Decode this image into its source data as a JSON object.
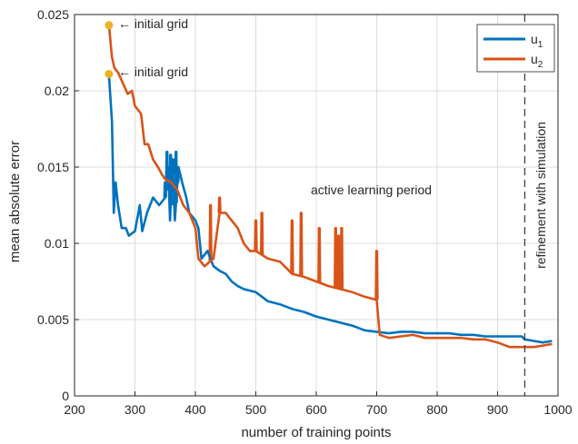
{
  "chart_data": {
    "type": "line",
    "title": "",
    "xlabel": "number of training points",
    "ylabel": "mean absolute error",
    "xlim": [
      200,
      1000
    ],
    "ylim": [
      0,
      0.025
    ],
    "x_ticks": [
      200,
      300,
      400,
      500,
      600,
      700,
      800,
      900,
      1000
    ],
    "x_tick_labels": [
      "200",
      "300",
      "400",
      "500",
      "600",
      "700",
      "800",
      "900",
      "1000"
    ],
    "y_ticks": [
      0,
      0.005,
      0.01,
      0.015,
      0.02,
      0.025
    ],
    "y_tick_labels": [
      "0",
      "0.005",
      "0.01",
      "0.015",
      "0.02",
      "0.025"
    ],
    "grid": true,
    "legend_placement": "top-right",
    "series": [
      {
        "name": "u1",
        "color": "#0072BD",
        "points": [
          [
            257,
            0.021
          ],
          [
            262,
            0.018
          ],
          [
            265,
            0.012
          ],
          [
            268,
            0.014
          ],
          [
            272,
            0.0125
          ],
          [
            278,
            0.011
          ],
          [
            285,
            0.011
          ],
          [
            290,
            0.0105
          ],
          [
            300,
            0.0108
          ],
          [
            308,
            0.0125
          ],
          [
            312,
            0.0108
          ],
          [
            320,
            0.012
          ],
          [
            330,
            0.013
          ],
          [
            340,
            0.0125
          ],
          [
            350,
            0.013
          ],
          [
            355,
            0.015
          ],
          [
            358,
            0.0115
          ],
          [
            362,
            0.0155
          ],
          [
            366,
            0.0115
          ],
          [
            372,
            0.015
          ],
          [
            378,
            0.014
          ],
          [
            385,
            0.013
          ],
          [
            390,
            0.012
          ],
          [
            400,
            0.0115
          ],
          [
            405,
            0.011
          ],
          [
            410,
            0.009
          ],
          [
            420,
            0.0095
          ],
          [
            430,
            0.0085
          ],
          [
            440,
            0.0082
          ],
          [
            450,
            0.008
          ],
          [
            460,
            0.0075
          ],
          [
            470,
            0.0072
          ],
          [
            480,
            0.007
          ],
          [
            500,
            0.0068
          ],
          [
            520,
            0.0062
          ],
          [
            540,
            0.006
          ],
          [
            560,
            0.0057
          ],
          [
            580,
            0.0055
          ],
          [
            600,
            0.0052
          ],
          [
            620,
            0.005
          ],
          [
            640,
            0.0048
          ],
          [
            660,
            0.0046
          ],
          [
            680,
            0.0043
          ],
          [
            700,
            0.0042
          ],
          [
            720,
            0.0041
          ],
          [
            740,
            0.0042
          ],
          [
            760,
            0.0042
          ],
          [
            780,
            0.0041
          ],
          [
            800,
            0.0041
          ],
          [
            820,
            0.0041
          ],
          [
            840,
            0.004
          ],
          [
            860,
            0.004
          ],
          [
            880,
            0.0039
          ],
          [
            900,
            0.0039
          ],
          [
            920,
            0.0039
          ],
          [
            940,
            0.0039
          ],
          [
            945,
            0.0037
          ],
          [
            960,
            0.0036
          ],
          [
            975,
            0.0035
          ],
          [
            990,
            0.0036
          ]
        ]
      },
      {
        "name": "u2",
        "color": "#D95319",
        "points": [
          [
            257,
            0.0243
          ],
          [
            262,
            0.0222
          ],
          [
            266,
            0.0215
          ],
          [
            272,
            0.0212
          ],
          [
            280,
            0.0205
          ],
          [
            288,
            0.0198
          ],
          [
            295,
            0.02
          ],
          [
            300,
            0.019
          ],
          [
            310,
            0.0185
          ],
          [
            316,
            0.0165
          ],
          [
            322,
            0.0165
          ],
          [
            330,
            0.0155
          ],
          [
            338,
            0.015
          ],
          [
            345,
            0.0145
          ],
          [
            350,
            0.0142
          ],
          [
            360,
            0.014
          ],
          [
            370,
            0.0135
          ],
          [
            380,
            0.0125
          ],
          [
            390,
            0.012
          ],
          [
            400,
            0.011
          ],
          [
            405,
            0.009
          ],
          [
            415,
            0.0085
          ],
          [
            430,
            0.009
          ],
          [
            440,
            0.012
          ],
          [
            450,
            0.012
          ],
          [
            460,
            0.0115
          ],
          [
            470,
            0.011
          ],
          [
            480,
            0.01
          ],
          [
            490,
            0.0095
          ],
          [
            500,
            0.0095
          ],
          [
            520,
            0.009
          ],
          [
            540,
            0.0088
          ],
          [
            560,
            0.008
          ],
          [
            580,
            0.0078
          ],
          [
            600,
            0.0075
          ],
          [
            620,
            0.0072
          ],
          [
            640,
            0.007
          ],
          [
            660,
            0.0068
          ],
          [
            680,
            0.0065
          ],
          [
            700,
            0.0063
          ],
          [
            705,
            0.004
          ],
          [
            720,
            0.0038
          ],
          [
            740,
            0.0039
          ],
          [
            760,
            0.004
          ],
          [
            780,
            0.0038
          ],
          [
            800,
            0.0038
          ],
          [
            820,
            0.0038
          ],
          [
            840,
            0.0038
          ],
          [
            860,
            0.0037
          ],
          [
            880,
            0.0037
          ],
          [
            900,
            0.0035
          ],
          [
            920,
            0.0032
          ],
          [
            940,
            0.0032
          ],
          [
            960,
            0.0032
          ],
          [
            975,
            0.0033
          ],
          [
            990,
            0.0034
          ]
        ]
      }
    ],
    "spikes": [
      {
        "series": 0,
        "x": [
          350,
          353,
          356,
          359,
          361,
          363,
          365,
          368,
          371
        ],
        "peak": [
          0.014,
          0.016,
          0.0135,
          0.0158,
          0.013,
          0.0155,
          0.0138,
          0.016,
          0.014
        ]
      },
      {
        "series": 1,
        "x": [
          425,
          440,
          500,
          510,
          560,
          575,
          605,
          632,
          637,
          642,
          700
        ],
        "peak": [
          0.0125,
          0.013,
          0.0115,
          0.012,
          0.0115,
          0.012,
          0.011,
          0.011,
          0.0105,
          0.011,
          0.0095
        ]
      }
    ],
    "markers": [
      {
        "x": 257,
        "y": 0.0243,
        "color": "#EDB120"
      },
      {
        "x": 257,
        "y": 0.0211,
        "color": "#EDB120"
      }
    ],
    "vline_x": 945,
    "annotations": {
      "initial_grid_1": "← initial grid",
      "initial_grid_2": "← initial grid",
      "active_learning": "active learning period",
      "refinement": "refinement with simulation"
    },
    "legend": [
      {
        "label": "u",
        "sub": "1",
        "color": "#0072BD"
      },
      {
        "label": "u",
        "sub": "2",
        "color": "#D95319"
      }
    ]
  }
}
